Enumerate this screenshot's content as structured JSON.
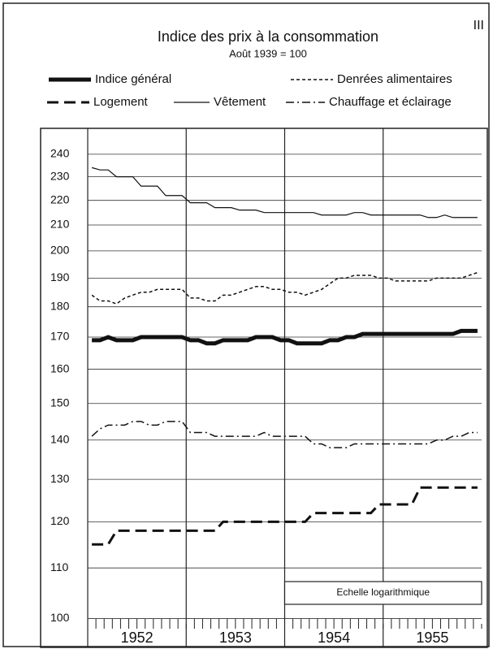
{
  "chart_data": {
    "type": "line",
    "corner_label": "III",
    "title": "Indice des prix à la consommation",
    "subtitle": "Août 1939 = 100",
    "scale_note": "Echelle logarithmique",
    "log_y": true,
    "grid": true,
    "x": [
      1952.042,
      1952.125,
      1952.208,
      1952.292,
      1952.375,
      1952.458,
      1952.542,
      1952.625,
      1952.708,
      1952.792,
      1952.875,
      1952.958,
      1953.042,
      1953.125,
      1953.208,
      1953.292,
      1953.375,
      1953.458,
      1953.542,
      1953.625,
      1953.708,
      1953.792,
      1953.875,
      1953.958,
      1954.042,
      1954.125,
      1954.208,
      1954.292,
      1954.375,
      1954.458,
      1954.542,
      1954.625,
      1954.708,
      1954.792,
      1954.875,
      1954.958,
      1955.042,
      1955.125,
      1955.208,
      1955.292,
      1955.375,
      1955.458,
      1955.542,
      1955.625,
      1955.708,
      1955.792,
      1955.875,
      1955.958
    ],
    "xlim": [
      1952,
      1956
    ],
    "xticks": [
      {
        "value": 1952.5,
        "label": "1952"
      },
      {
        "value": 1953.5,
        "label": "1953"
      },
      {
        "value": 1954.5,
        "label": "1954"
      },
      {
        "value": 1955.5,
        "label": "1955"
      }
    ],
    "year_lines": [
      1953,
      1954,
      1955
    ],
    "ylim": [
      99,
      252
    ],
    "yticks": [
      100,
      110,
      120,
      130,
      140,
      150,
      160,
      170,
      180,
      190,
      200,
      210,
      220,
      230,
      240
    ],
    "series": [
      {
        "name": "Indice général",
        "color": "#111",
        "linestyle": "solid",
        "width": 5,
        "values": [
          169,
          169,
          170,
          169,
          169,
          169,
          170,
          170,
          170,
          170,
          170,
          170,
          169,
          169,
          168,
          168,
          169,
          169,
          169,
          169,
          170,
          170,
          170,
          169,
          169,
          168,
          168,
          168,
          168,
          169,
          169,
          170,
          170,
          171,
          171,
          171,
          171,
          171,
          171,
          171,
          171,
          171,
          171,
          171,
          171,
          172,
          172,
          172
        ]
      },
      {
        "name": "Denrées alimentaires",
        "color": "#111",
        "linestyle": "dotted",
        "width": 1.5,
        "values": [
          184,
          182,
          182,
          181,
          183,
          184,
          185,
          185,
          186,
          186,
          186,
          186,
          183,
          183,
          182,
          182,
          184,
          184,
          185,
          186,
          187,
          187,
          186,
          186,
          185,
          185,
          184,
          185,
          186,
          188,
          190,
          190,
          191,
          191,
          191,
          190,
          190,
          189,
          189,
          189,
          189,
          189,
          190,
          190,
          190,
          190,
          191,
          192
        ]
      },
      {
        "name": "Logement",
        "color": "#111",
        "linestyle": "dashed",
        "width": 3,
        "values": [
          115,
          115,
          115,
          118,
          118,
          118,
          118,
          118,
          118,
          118,
          118,
          118,
          118,
          118,
          118,
          118,
          120,
          120,
          120,
          120,
          120,
          120,
          120,
          120,
          120,
          120,
          120,
          122,
          122,
          122,
          122,
          122,
          122,
          122,
          122,
          124,
          124,
          124,
          124,
          124,
          128,
          128,
          128,
          128,
          128,
          128,
          128,
          128
        ]
      },
      {
        "name": "Vêtement",
        "color": "#111",
        "linestyle": "solid",
        "width": 1.2,
        "values": [
          234,
          233,
          233,
          230,
          230,
          230,
          226,
          226,
          226,
          222,
          222,
          222,
          219,
          219,
          219,
          217,
          217,
          217,
          216,
          216,
          216,
          215,
          215,
          215,
          215,
          215,
          215,
          215,
          214,
          214,
          214,
          214,
          215,
          215,
          214,
          214,
          214,
          214,
          214,
          214,
          214,
          213,
          213,
          214,
          213,
          213,
          213,
          213
        ]
      },
      {
        "name": "Chauffage et éclairage",
        "color": "#111",
        "linestyle": "dashdot",
        "width": 1.5,
        "values": [
          141,
          143,
          144,
          144,
          144,
          145,
          145,
          144,
          144,
          145,
          145,
          145,
          142,
          142,
          142,
          141,
          141,
          141,
          141,
          141,
          141,
          142,
          141,
          141,
          141,
          141,
          141,
          139,
          139,
          138,
          138,
          138,
          139,
          139,
          139,
          139,
          139,
          139,
          139,
          139,
          139,
          139,
          140,
          140,
          141,
          141,
          142,
          142
        ]
      }
    ]
  }
}
